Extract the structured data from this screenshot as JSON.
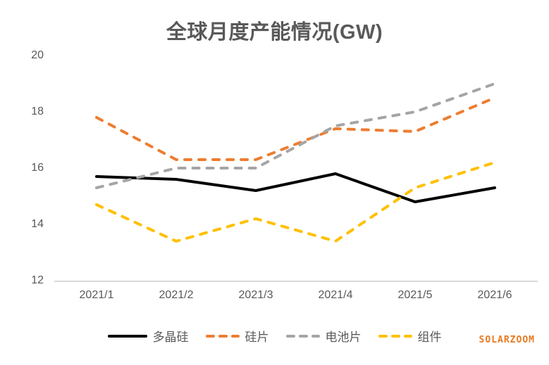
{
  "title": "全球月度产能情况(GW)",
  "watermark": {
    "text": "SOLARZOOM",
    "color": "#E8791F"
  },
  "colors": {
    "title_text": "#595959",
    "axis_text": "#595959",
    "axis_line": "#D9D9D9"
  },
  "chart_data": {
    "type": "line",
    "title": "全球月度产能情况(GW)",
    "categories": [
      "2021/1",
      "2021/2",
      "2021/3",
      "2021/4",
      "2021/5",
      "2021/6"
    ],
    "series": [
      {
        "name": "多晶硅",
        "color": "#000000",
        "dashed": false,
        "values": [
          15.7,
          15.6,
          15.2,
          15.8,
          14.8,
          15.3
        ]
      },
      {
        "name": "硅片",
        "color": "#ED7D31",
        "dashed": true,
        "values": [
          17.8,
          16.3,
          16.3,
          17.4,
          17.3,
          18.5
        ]
      },
      {
        "name": "电池片",
        "color": "#A5A5A5",
        "dashed": true,
        "values": [
          15.3,
          16.0,
          16.0,
          17.5,
          18.0,
          19.0
        ]
      },
      {
        "name": "组件",
        "color": "#FFC000",
        "dashed": true,
        "values": [
          14.7,
          13.4,
          14.2,
          13.4,
          15.3,
          16.2
        ]
      }
    ],
    "ylim": [
      12,
      20
    ],
    "yticks": [
      12,
      14,
      16,
      18,
      20
    ],
    "xlabel": "",
    "ylabel": "",
    "grid": false,
    "legend_position": "bottom"
  }
}
